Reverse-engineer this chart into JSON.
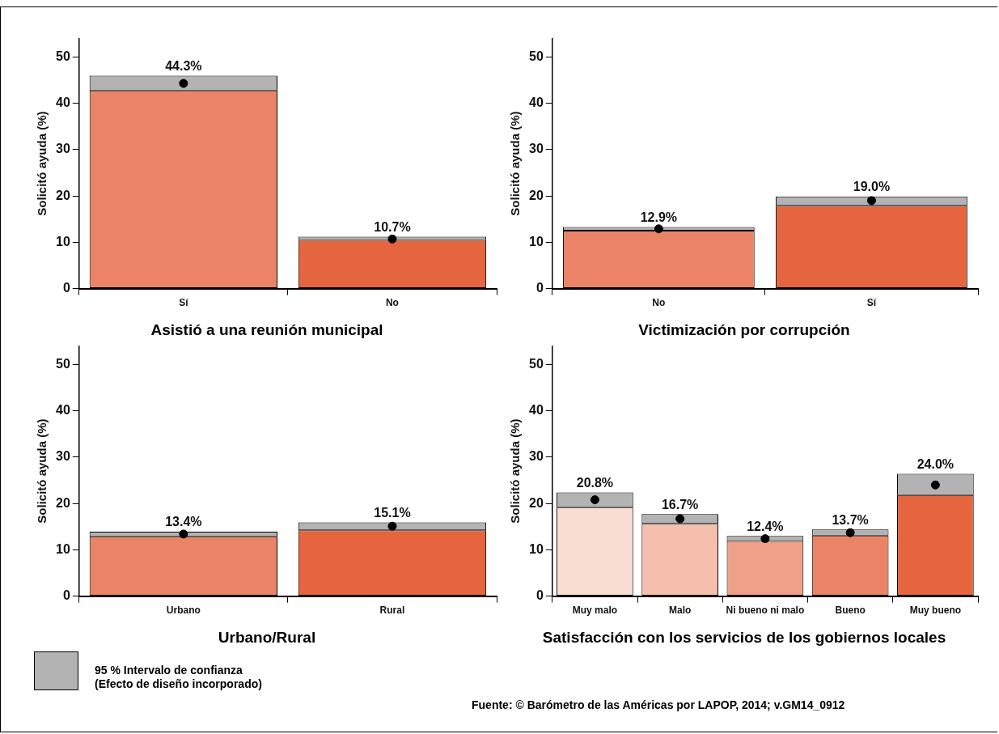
{
  "chart_data": [
    {
      "type": "bar",
      "stacked": true,
      "xlabel": "Asistió a una reunión municipal",
      "ylabel": "Solicitó ayuda (%)",
      "categories": [
        "Sí",
        "No"
      ],
      "series": [
        {
          "colors": [
            "#eb8466",
            "#e5663e"
          ],
          "values": [
            42.8,
            10.5
          ]
        },
        {
          "color": "#b3b3b3",
          "values": [
            3.2,
            0.7
          ]
        },
        {
          "type": "scatter",
          "color": "#000000",
          "x": [
            "Sí",
            "No"
          ],
          "values": [
            44.3,
            10.7
          ],
          "value_labels": [
            "44.3%",
            "10.7%"
          ]
        }
      ],
      "marker": "circle",
      "ylim": [
        0,
        54
      ],
      "yticks": [
        0,
        10,
        20,
        30,
        40,
        50
      ],
      "grid": false,
      "legend": false
    },
    {
      "type": "bar",
      "stacked": true,
      "xlabel": "Victimización por corrupción",
      "ylabel": "Solicitó ayuda (%)",
      "categories": [
        "No",
        "Sí"
      ],
      "series": [
        {
          "colors": [
            "#eb8466",
            "#e5663e"
          ],
          "values": [
            12.5,
            17.9
          ]
        },
        {
          "color": "#b3b3b3",
          "values": [
            0.8,
            2.0
          ]
        },
        {
          "type": "scatter",
          "color": "#000000",
          "x": [
            "No",
            "Sí"
          ],
          "values": [
            12.9,
            19.0
          ],
          "value_labels": [
            "12.9%",
            "19.0%"
          ]
        }
      ],
      "marker": "circle",
      "ylim": [
        0,
        54
      ],
      "yticks": [
        0,
        10,
        20,
        30,
        40,
        50
      ],
      "grid": false,
      "legend": false
    },
    {
      "type": "bar",
      "stacked": true,
      "xlabel": "Urbano/Rural",
      "ylabel": "Solicitó ayuda (%)",
      "categories": [
        "Urbano",
        "Rural"
      ],
      "series": [
        {
          "colors": [
            "#eb8466",
            "#e5663e"
          ],
          "values": [
            12.9,
            14.2
          ]
        },
        {
          "color": "#b3b3b3",
          "values": [
            1.0,
            1.7
          ]
        },
        {
          "type": "scatter",
          "color": "#000000",
          "x": [
            "Urbano",
            "Rural"
          ],
          "values": [
            13.4,
            15.1
          ],
          "value_labels": [
            "13.4%",
            "15.1%"
          ]
        }
      ],
      "marker": "circle",
      "ylim": [
        0,
        54
      ],
      "yticks": [
        0,
        10,
        20,
        30,
        40,
        50
      ],
      "grid": false,
      "legend": false,
      "annotations": [
        "95 % Intervalo de confianza\n(Efecto de diseño incorporado)"
      ]
    },
    {
      "type": "bar",
      "stacked": true,
      "xlabel": "Satisfacción con los servicios de los gobiernos locales",
      "ylabel": "Solicitó ayuda (%)",
      "categories": [
        "Muy malo",
        "Malo",
        "Ni bueno ni malo",
        "Bueno",
        "Muy bueno"
      ],
      "series": [
        {
          "colors": [
            "#f9ddd3",
            "#f4c0ad",
            "#f0a089",
            "#eb8466",
            "#e5663e"
          ],
          "values": [
            19.2,
            15.6,
            11.9,
            13.1,
            21.8
          ]
        },
        {
          "color": "#b3b3b3",
          "values": [
            3.2,
            2.1,
            1.1,
            1.3,
            4.6
          ]
        },
        {
          "type": "scatter",
          "color": "#000000",
          "x": [
            "Muy malo",
            "Malo",
            "Ni bueno ni malo",
            "Bueno",
            "Muy bueno"
          ],
          "values": [
            20.8,
            16.7,
            12.4,
            13.7,
            24.0
          ],
          "value_labels": [
            "20.8%",
            "16.7%",
            "12.4%",
            "13.7%",
            "24.0%"
          ]
        }
      ],
      "marker": "circle",
      "ylim": [
        0,
        54
      ],
      "yticks": [
        0,
        10,
        20,
        30,
        40,
        50
      ],
      "grid": false,
      "legend": false,
      "annotations": [
        "Fuente: © Barómetro de las Américas por LAPOP, 2014; v.GM14_0912"
      ]
    }
  ]
}
